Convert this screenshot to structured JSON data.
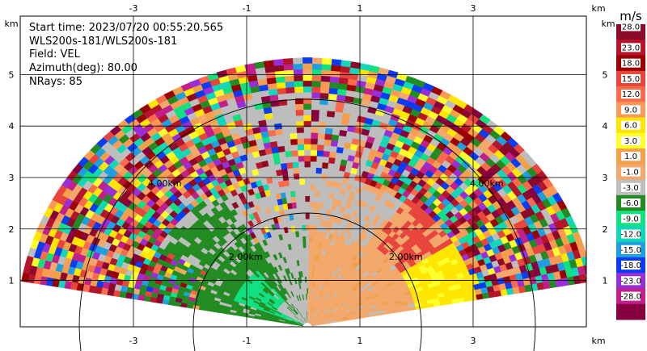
{
  "info": {
    "start_time": "Start time: 2023/07/20 00:55:20.565",
    "instrument": "WLS200s-181/WLS200s-181",
    "field": "Field: VEL",
    "azimuth": "Azimuth(deg): 80.00",
    "nrays": "NRays: 85"
  },
  "chart_data": {
    "type": "heatmap",
    "x_unit": "km",
    "y_unit": "km",
    "xlim": [
      -5.0,
      5.0
    ],
    "ylim": [
      0,
      6.0
    ],
    "x_ticks": [
      -3,
      -1,
      1,
      3
    ],
    "y_ticks": [
      1,
      2,
      3,
      4,
      5
    ],
    "x_tick_labels": [
      "-3",
      "-1",
      "1",
      "3"
    ],
    "y_tick_labels": [
      "1",
      "2",
      "3",
      "4",
      "5"
    ],
    "range_rings_km": [
      2.0,
      4.0
    ],
    "ring_labels": [
      "2.00km",
      "2.00km",
      "4.00km",
      "4.00km"
    ],
    "grid": true,
    "colorbar": {
      "unit": "m/s",
      "labels": [
        "28.0",
        "23.0",
        "18.0",
        "15.0",
        "12.0",
        "9.0",
        "6.0",
        "3.0",
        "1.0",
        "-1.0",
        "-3.0",
        "-6.0",
        "-9.0",
        "-12.0",
        "-15.0",
        "-18.0",
        "-23.0",
        "-28.0"
      ],
      "colors": [
        "#8b0a2a",
        "#b5152b",
        "#9a0000",
        "#e8453c",
        "#f86b4d",
        "#fb9a57",
        "#ffe600",
        "#ffff2b",
        "#f2a04a",
        "#f3a86b",
        "#bdbdbd",
        "#228b22",
        "#10e080",
        "#12d6b8",
        "#1f9fe0",
        "#0b3cf2",
        "#9a2ed6",
        "#c21f8c",
        "#86003f"
      ]
    }
  }
}
